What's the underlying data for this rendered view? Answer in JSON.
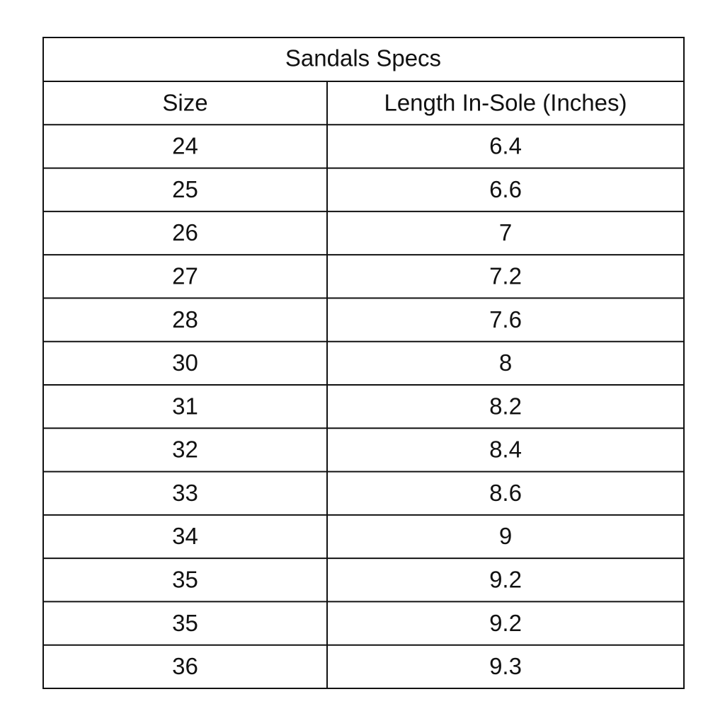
{
  "table": {
    "title": "Sandals Specs",
    "headers": [
      "Size",
      "Length In-Sole (Inches)"
    ],
    "rows": [
      [
        24,
        6.4
      ],
      [
        25,
        6.6
      ],
      [
        26,
        7
      ],
      [
        27,
        7.2
      ],
      [
        28,
        7.6
      ],
      [
        30,
        8
      ],
      [
        31,
        8.2
      ],
      [
        32,
        8.4
      ],
      [
        33,
        8.6
      ],
      [
        34,
        9
      ],
      [
        35,
        9.2
      ],
      [
        35,
        9.2
      ],
      [
        36,
        9.3
      ]
    ]
  }
}
